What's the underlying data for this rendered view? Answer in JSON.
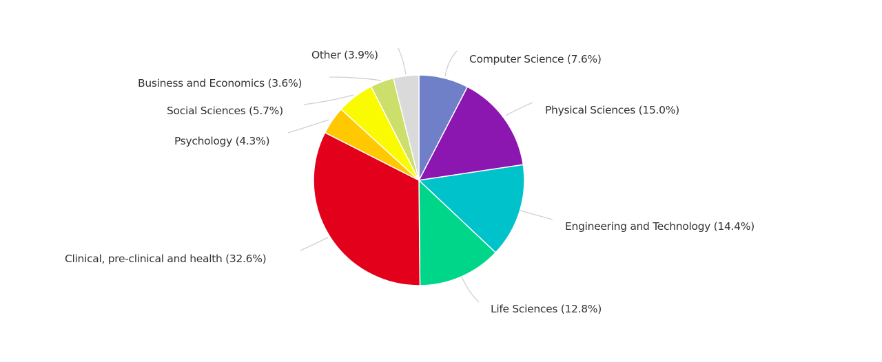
{
  "chart_data": {
    "type": "pie",
    "title": "",
    "start_angle_deg": 0,
    "direction": "clockwise",
    "slices": [
      {
        "name": "Computer Science",
        "value": 7.6,
        "label": "Computer Science (7.6%)",
        "color": "#6F7FC8"
      },
      {
        "name": "Physical Sciences",
        "value": 15.0,
        "label": "Physical Sciences (15.0%)",
        "color": "#8B16B0"
      },
      {
        "name": "Engineering and Technology",
        "value": 14.4,
        "label": "Engineering and Technology (14.4%)",
        "color": "#00C2CB"
      },
      {
        "name": "Life Sciences",
        "value": 12.8,
        "label": "Life Sciences (12.8%)",
        "color": "#00D68A"
      },
      {
        "name": "Clinical, pre-clinical and health",
        "value": 32.6,
        "label": "Clinical, pre-clinical and health (32.6%)",
        "color": "#E2001A"
      },
      {
        "name": "Psychology",
        "value": 4.3,
        "label": "Psychology (4.3%)",
        "color": "#FFC800"
      },
      {
        "name": "Social Sciences",
        "value": 5.7,
        "label": "Social Sciences (5.7%)",
        "color": "#FAFA00"
      },
      {
        "name": "Business and Economics",
        "value": 3.6,
        "label": "Business and Economics (3.6%)",
        "color": "#CDDF6B"
      },
      {
        "name": "Other",
        "value": 3.9,
        "label": "Other (3.9%)",
        "color": "#DADADA"
      }
    ],
    "legend": "none (external labels with leader lines)"
  },
  "labels": {
    "computer_science": "Computer Science (7.6%)",
    "physical_sciences": "Physical Sciences (15.0%)",
    "engineering": "Engineering and Technology (14.4%)",
    "life_sciences": "Life Sciences (12.8%)",
    "clinical": "Clinical, pre-clinical and health (32.6%)",
    "psychology": "Psychology (4.3%)",
    "social_sciences": "Social Sciences (5.7%)",
    "business": "Business and Economics (3.6%)",
    "other": "Other (3.9%)"
  },
  "style": {
    "leader_line_color": "#D0D0D0",
    "slice_border_color": "#FFFFFF"
  }
}
